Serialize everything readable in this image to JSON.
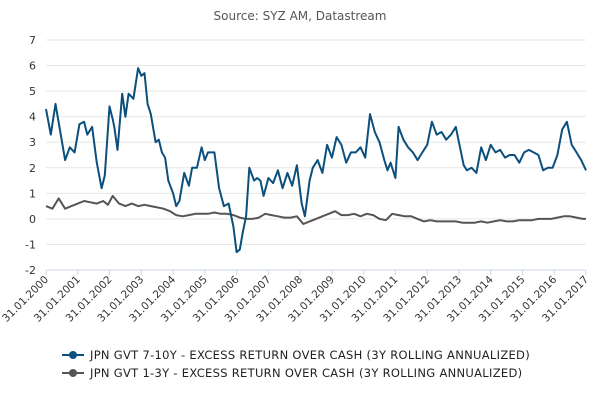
{
  "source": "Source: SYZ AM, Datastream",
  "chart_data": {
    "type": "line",
    "title": "",
    "xlabel": "",
    "ylabel": "",
    "ylim": [
      -2,
      7
    ],
    "yticks": [
      "7",
      "6",
      "5",
      "4",
      "3",
      "2",
      "1",
      "0",
      "-1",
      "-2"
    ],
    "xlim": [
      2000.0,
      2017.0
    ],
    "xticks": [
      "31.01.2000",
      "31.01.2001",
      "31.01.2002",
      "31.01.2003",
      "31.01.2004",
      "31.01.2005",
      "31.01.2006",
      "31.01.2007",
      "31.01.2008",
      "31.01.2009",
      "31.01.2010",
      "31.01.2011",
      "31.01.2012",
      "31.01.2013",
      "31.01.2014",
      "31.01.2015",
      "31.01.2016",
      "31.01.2017"
    ],
    "grid": "horizontal",
    "legend_position": "bottom",
    "series": [
      {
        "name": "JPN GVT 7-10Y - EXCESS RETURN OVER CASH (3Y ROLLING ANNUALIZED)",
        "color": "#0b4f7c",
        "x": [
          2000.0,
          2000.15,
          2000.3,
          2000.45,
          2000.6,
          2000.75,
          2000.9,
          2001.05,
          2001.2,
          2001.3,
          2001.45,
          2001.6,
          2001.75,
          2001.85,
          2002.0,
          2002.1,
          2002.15,
          2002.25,
          2002.4,
          2002.5,
          2002.6,
          2002.75,
          2002.9,
          2003.0,
          2003.1,
          2003.2,
          2003.3,
          2003.45,
          2003.55,
          2003.65,
          2003.75,
          2003.85,
          2004.0,
          2004.1,
          2004.2,
          2004.35,
          2004.5,
          2004.6,
          2004.75,
          2004.9,
          2005.0,
          2005.1,
          2005.2,
          2005.3,
          2005.45,
          2005.6,
          2005.75,
          2005.9,
          2006.0,
          2006.1,
          2006.2,
          2006.3,
          2006.4,
          2006.55,
          2006.65,
          2006.75,
          2006.85,
          2007.0,
          2007.15,
          2007.3,
          2007.45,
          2007.6,
          2007.75,
          2007.9,
          2008.05,
          2008.15,
          2008.3,
          2008.4,
          2008.55,
          2008.7,
          2008.85,
          2009.0,
          2009.15,
          2009.3,
          2009.45,
          2009.6,
          2009.75,
          2009.9,
          2010.05,
          2010.2,
          2010.35,
          2010.5,
          2010.65,
          2010.75,
          2010.85,
          2011.0,
          2011.1,
          2011.25,
          2011.4,
          2011.55,
          2011.7,
          2011.85,
          2012.0,
          2012.15,
          2012.3,
          2012.45,
          2012.6,
          2012.75,
          2012.9,
          2013.0,
          2013.15,
          2013.25,
          2013.4,
          2013.55,
          2013.7,
          2013.85,
          2014.0,
          2014.15,
          2014.3,
          2014.45,
          2014.6,
          2014.75,
          2014.9,
          2015.05,
          2015.2,
          2015.35,
          2015.5,
          2015.65,
          2015.8,
          2015.95,
          2016.1,
          2016.25,
          2016.4,
          2016.55,
          2016.7,
          2016.85,
          2017.0
        ],
        "y": [
          4.3,
          3.3,
          4.5,
          3.4,
          2.3,
          2.8,
          2.6,
          3.7,
          3.8,
          3.3,
          3.6,
          2.2,
          1.2,
          1.7,
          4.4,
          3.9,
          3.6,
          2.7,
          4.9,
          4.0,
          4.9,
          4.7,
          5.9,
          5.6,
          5.7,
          4.5,
          4.1,
          3.0,
          3.1,
          2.6,
          2.4,
          1.5,
          1.0,
          0.5,
          0.7,
          1.8,
          1.3,
          2.0,
          2.0,
          2.8,
          2.3,
          2.6,
          2.6,
          2.6,
          1.2,
          0.5,
          0.6,
          -0.3,
          -1.3,
          -1.2,
          -0.5,
          0.1,
          2.0,
          1.5,
          1.6,
          1.5,
          0.9,
          1.6,
          1.4,
          1.9,
          1.2,
          1.8,
          1.3,
          2.1,
          0.6,
          0.1,
          1.5,
          2.0,
          2.3,
          1.8,
          2.9,
          2.4,
          3.2,
          2.9,
          2.2,
          2.6,
          2.6,
          2.8,
          2.4,
          4.1,
          3.4,
          3.0,
          2.3,
          1.9,
          2.2,
          1.6,
          3.6,
          3.1,
          2.8,
          2.6,
          2.3,
          2.6,
          2.9,
          3.8,
          3.3,
          3.4,
          3.1,
          3.3,
          3.6,
          3.0,
          2.1,
          1.9,
          2.0,
          1.8,
          2.8,
          2.3,
          2.9,
          2.6,
          2.7,
          2.4,
          2.5,
          2.5,
          2.2,
          2.6,
          2.7,
          2.6,
          2.5,
          1.9,
          2.0,
          2.0,
          2.5,
          3.5,
          3.8,
          2.9,
          2.6,
          2.3,
          1.9
        ]
      },
      {
        "name": "JPN GVT 1-3Y - EXCESS RETURN OVER CASH (3Y ROLLING ANNUALIZED)",
        "color": "#555555",
        "x": [
          2000.0,
          2000.2,
          2000.4,
          2000.6,
          2000.8,
          2001.0,
          2001.2,
          2001.4,
          2001.6,
          2001.8,
          2001.95,
          2002.1,
          2002.3,
          2002.5,
          2002.7,
          2002.9,
          2003.1,
          2003.3,
          2003.5,
          2003.7,
          2003.9,
          2004.1,
          2004.3,
          2004.5,
          2004.7,
          2004.9,
          2005.1,
          2005.3,
          2005.5,
          2005.7,
          2005.9,
          2006.1,
          2006.3,
          2006.5,
          2006.7,
          2006.9,
          2007.1,
          2007.3,
          2007.5,
          2007.7,
          2007.9,
          2008.1,
          2008.3,
          2008.5,
          2008.7,
          2008.9,
          2009.1,
          2009.3,
          2009.5,
          2009.7,
          2009.9,
          2010.1,
          2010.3,
          2010.5,
          2010.7,
          2010.9,
          2011.1,
          2011.3,
          2011.5,
          2011.7,
          2011.9,
          2012.1,
          2012.3,
          2012.5,
          2012.7,
          2012.9,
          2013.1,
          2013.3,
          2013.5,
          2013.7,
          2013.9,
          2014.1,
          2014.3,
          2014.5,
          2014.7,
          2014.9,
          2015.1,
          2015.3,
          2015.5,
          2015.7,
          2015.9,
          2016.1,
          2016.3,
          2016.5,
          2016.7,
          2016.9,
          2017.0
        ],
        "y": [
          0.5,
          0.4,
          0.8,
          0.4,
          0.5,
          0.6,
          0.7,
          0.65,
          0.6,
          0.7,
          0.55,
          0.9,
          0.6,
          0.5,
          0.6,
          0.5,
          0.55,
          0.5,
          0.45,
          0.4,
          0.3,
          0.15,
          0.1,
          0.15,
          0.2,
          0.2,
          0.2,
          0.25,
          0.2,
          0.2,
          0.15,
          0.05,
          0.0,
          0.0,
          0.05,
          0.2,
          0.15,
          0.1,
          0.05,
          0.05,
          0.1,
          -0.2,
          -0.1,
          0.0,
          0.1,
          0.2,
          0.3,
          0.15,
          0.15,
          0.2,
          0.1,
          0.2,
          0.15,
          0.0,
          -0.05,
          0.2,
          0.15,
          0.1,
          0.1,
          0.0,
          -0.1,
          -0.05,
          -0.1,
          -0.1,
          -0.1,
          -0.1,
          -0.15,
          -0.15,
          -0.15,
          -0.1,
          -0.15,
          -0.1,
          -0.05,
          -0.1,
          -0.1,
          -0.05,
          -0.05,
          -0.05,
          0.0,
          0.0,
          0.0,
          0.05,
          0.1,
          0.1,
          0.05,
          0.0,
          0.0
        ]
      }
    ]
  }
}
